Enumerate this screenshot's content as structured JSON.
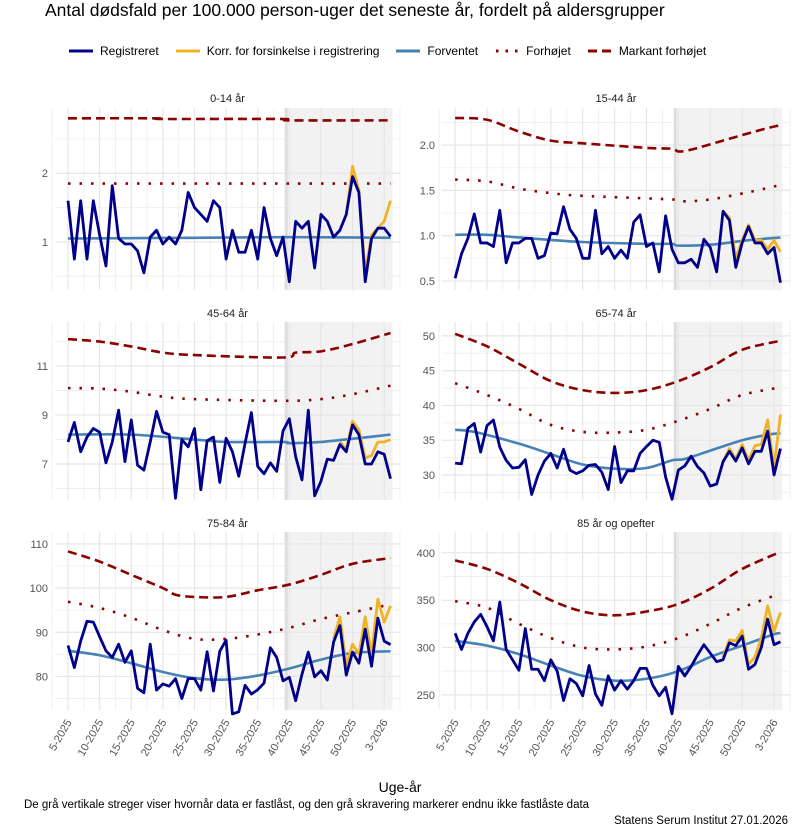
{
  "title": "Antal dødsfald per 100.000 person-uger det seneste år, fordelt på aldersgrupper",
  "legend": [
    {
      "label": "Registreret",
      "color": "#00008B",
      "style": "solid"
    },
    {
      "label": "Korr. for forsinkelse i registrering",
      "color": "#F0B323",
      "style": "solid"
    },
    {
      "label": "Forventet",
      "color": "#4682B4",
      "style": "solid"
    },
    {
      "label": "Forhøjet",
      "color": "#8B0000",
      "style": "dotted"
    },
    {
      "label": "Markant forhøjet",
      "color": "#8B0000",
      "style": "dashed"
    }
  ],
  "xlabel": "Uge-år",
  "footnote": "De grå vertikale streger viser hvornår data er fastlåst, og den grå skravering markerer endnu ikke fastlåste data",
  "credit": "Statens Serum Institut  27.01.2026",
  "chart_data": {
    "type": "line",
    "categories": [
      "5-2025",
      "6-2025",
      "7-2025",
      "8-2025",
      "9-2025",
      "10-2025",
      "11-2025",
      "12-2025",
      "13-2025",
      "14-2025",
      "15-2025",
      "16-2025",
      "17-2025",
      "18-2025",
      "19-2025",
      "20-2025",
      "21-2025",
      "22-2025",
      "23-2025",
      "24-2025",
      "25-2025",
      "26-2025",
      "27-2025",
      "28-2025",
      "29-2025",
      "30-2025",
      "31-2025",
      "32-2025",
      "33-2025",
      "34-2025",
      "35-2025",
      "36-2025",
      "37-2025",
      "38-2025",
      "39-2025",
      "40-2025",
      "41-2025",
      "42-2025",
      "43-2025",
      "44-2025",
      "45-2025",
      "46-2025",
      "47-2025",
      "48-2025",
      "49-2025",
      "50-2025",
      "51-2025",
      "52-2025",
      "1-2026",
      "2-2026",
      "3-2026",
      "4-2026"
    ],
    "x_tick_labels": [
      "5-2025",
      "10-2025",
      "15-2025",
      "20-2025",
      "25-2025",
      "30-2025",
      "35-2025",
      "40-2025",
      "45-2025",
      "50-2025",
      "3-2026"
    ],
    "x_tick_indices": [
      0,
      5,
      10,
      15,
      20,
      25,
      30,
      35,
      40,
      45,
      50
    ],
    "frozen_line_index": 34.5,
    "shaded_range_index": [
      34.5,
      51.3
    ],
    "panels": [
      {
        "label": "0-14 år",
        "ylim": [
          0.3,
          2.95
        ],
        "yticks": [
          1,
          2
        ],
        "ytick_labels": [
          "1",
          "2"
        ],
        "registered": [
          1.6,
          0.75,
          1.6,
          0.75,
          1.6,
          1.1,
          0.65,
          1.82,
          1.05,
          0.97,
          0.97,
          0.87,
          0.55,
          1.07,
          1.17,
          0.97,
          1.07,
          0.97,
          1.17,
          1.72,
          1.5,
          1.4,
          1.3,
          1.6,
          1.5,
          0.75,
          1.17,
          0.85,
          0.85,
          1.17,
          0.75,
          1.5,
          1.05,
          0.8,
          1.07,
          0.42,
          1.3,
          1.2,
          1.3,
          0.62,
          1.4,
          1.3,
          1.07,
          1.17,
          1.4,
          1.95,
          1.72,
          0.42,
          1.05,
          1.2,
          1.2,
          1.08
        ],
        "corrected": {
          "start_index": 44,
          "values": [
            1.4,
            2.1,
            1.75,
            0.55,
            1.1,
            1.2,
            1.3,
            1.6
          ]
        },
        "expected": {
          "index": [
            0,
            20,
            35,
            51
          ],
          "values": [
            1.05,
            1.06,
            1.07,
            1.06
          ]
        },
        "elevated": {
          "index": [
            0,
            51
          ],
          "values": [
            1.85,
            1.85
          ]
        },
        "markedly_elevated": {
          "index": [
            0,
            14,
            15,
            34,
            35,
            51
          ],
          "values": [
            2.8,
            2.8,
            2.79,
            2.79,
            2.77,
            2.77
          ]
        }
      },
      {
        "label": "15-44 år",
        "ylim": [
          0.4,
          2.41
        ],
        "yticks": [
          0.5,
          1.0,
          1.5,
          2.0
        ],
        "ytick_labels": [
          "0.5",
          "1.0",
          "1.5",
          "2.0"
        ],
        "registered": [
          0.53,
          0.8,
          0.97,
          1.24,
          0.92,
          0.92,
          0.88,
          1.28,
          0.7,
          0.92,
          0.92,
          0.97,
          0.97,
          0.75,
          0.78,
          1.03,
          1.02,
          1.32,
          1.07,
          0.97,
          0.75,
          0.75,
          1.28,
          0.8,
          0.88,
          0.75,
          0.84,
          0.75,
          1.15,
          1.23,
          0.88,
          0.92,
          0.6,
          1.22,
          0.85,
          0.7,
          0.7,
          0.74,
          0.65,
          0.96,
          0.87,
          0.6,
          1.27,
          1.17,
          0.65,
          0.92,
          1.1,
          0.92,
          0.92,
          0.8,
          0.87,
          0.48
        ],
        "corrected": {
          "start_index": 42,
          "values": [
            1.27,
            1.2,
            0.75,
            0.95,
            1.12,
            0.95,
            0.95,
            0.85,
            0.95,
            0.82
          ]
        },
        "expected": {
          "index": [
            0,
            5,
            10,
            20,
            30,
            34,
            35,
            40,
            46,
            51
          ],
          "values": [
            1.01,
            1.01,
            0.98,
            0.93,
            0.91,
            0.91,
            0.89,
            0.9,
            0.95,
            0.98
          ]
        },
        "elevated": {
          "index": [
            0,
            5,
            10,
            15,
            20,
            34,
            36,
            40,
            46,
            51
          ],
          "values": [
            1.62,
            1.6,
            1.52,
            1.47,
            1.44,
            1.4,
            1.38,
            1.4,
            1.48,
            1.56
          ]
        },
        "markedly_elevated": {
          "index": [
            0,
            5,
            10,
            15,
            20,
            30,
            34,
            35,
            37,
            42,
            48,
            51
          ],
          "values": [
            2.3,
            2.28,
            2.15,
            2.05,
            2.02,
            1.97,
            1.96,
            1.93,
            1.95,
            2.05,
            2.17,
            2.22
          ]
        }
      },
      {
        "label": "45-64 år",
        "ylim": [
          5.53,
          12.8
        ],
        "yticks": [
          7,
          9,
          11
        ],
        "ytick_labels": [
          "7",
          "9",
          "11"
        ],
        "registered": [
          7.9,
          8.7,
          7.5,
          8.1,
          8.45,
          8.3,
          7.05,
          7.9,
          9.2,
          7.1,
          8.8,
          6.95,
          6.75,
          7.9,
          9.15,
          8.3,
          8.2,
          5.6,
          8.0,
          7.7,
          8.45,
          5.95,
          7.95,
          8.1,
          6.25,
          8.05,
          7.5,
          6.5,
          7.85,
          9.1,
          6.9,
          6.6,
          7.05,
          6.7,
          8.35,
          8.85,
          7.3,
          6.35,
          9.2,
          5.7,
          6.3,
          7.2,
          7.15,
          7.8,
          7.5,
          8.6,
          8.2,
          7.0,
          7.0,
          7.5,
          7.4,
          6.4
        ],
        "corrected": {
          "start_index": 43,
          "values": [
            7.9,
            7.6,
            8.75,
            8.4,
            7.25,
            7.35,
            7.9,
            7.9,
            8.0
          ]
        },
        "expected": {
          "index": [
            0,
            10,
            20,
            25,
            34,
            35,
            40,
            51
          ],
          "values": [
            8.2,
            8.2,
            8.0,
            7.9,
            7.9,
            7.85,
            7.9,
            8.2
          ]
        },
        "elevated": {
          "index": [
            0,
            5,
            10,
            15,
            20,
            34,
            40,
            45,
            51
          ],
          "values": [
            10.1,
            10.08,
            9.95,
            9.75,
            9.65,
            9.58,
            9.65,
            9.85,
            10.2
          ]
        },
        "markedly_elevated": {
          "index": [
            0,
            5,
            10,
            15,
            20,
            34,
            36,
            40,
            45,
            51
          ],
          "values": [
            12.1,
            12.0,
            11.8,
            11.55,
            11.45,
            11.35,
            11.55,
            11.6,
            11.9,
            12.35
          ]
        }
      },
      {
        "label": "65-74 år",
        "ylim": [
          26.4,
          52
        ],
        "yticks": [
          30,
          35,
          40,
          45,
          50
        ],
        "ytick_labels": [
          "30",
          "35",
          "40",
          "45",
          "50"
        ],
        "registered": [
          31.7,
          31.6,
          36.7,
          37.4,
          33.3,
          37.1,
          37.9,
          34.0,
          32.1,
          31.0,
          31.1,
          32.2,
          27.2,
          30.0,
          32.0,
          33.1,
          31.0,
          33.7,
          30.7,
          30.2,
          30.6,
          31.4,
          31.5,
          30.4,
          27.9,
          34.1,
          28.9,
          30.6,
          30.6,
          33.1,
          34.1,
          35.0,
          34.7,
          29.7,
          26.5,
          30.7,
          31.3,
          32.7,
          31.2,
          30.3,
          28.4,
          28.7,
          31.9,
          33.4,
          32.0,
          33.9,
          31.6,
          33.4,
          33.4,
          36.3,
          30.0,
          33.8
        ],
        "corrected": {
          "start_index": 42,
          "values": [
            31.9,
            33.8,
            32.3,
            34.4,
            32.1,
            34.2,
            34.4,
            37.9,
            31.0,
            38.7
          ]
        },
        "expected": {
          "index": [
            0,
            3,
            10,
            15,
            20,
            25,
            30,
            34,
            36,
            40,
            45,
            49,
            51
          ],
          "values": [
            36.5,
            36.2,
            34.5,
            33,
            31.5,
            30.9,
            31.0,
            32.1,
            32.3,
            33.5,
            35.0,
            35.8,
            36.0
          ]
        },
        "elevated": {
          "index": [
            0,
            5,
            10,
            15,
            20,
            25,
            30,
            35,
            40,
            45,
            51
          ],
          "values": [
            43.2,
            41.5,
            39.5,
            37.2,
            36.2,
            36.1,
            36.5,
            37.8,
            39.5,
            41.5,
            42.6
          ]
        },
        "markedly_elevated": {
          "index": [
            0,
            5,
            10,
            15,
            20,
            25,
            30,
            35,
            40,
            45,
            51
          ],
          "values": [
            50.3,
            48.5,
            46,
            43.5,
            42.2,
            41.8,
            42.2,
            43.5,
            45.5,
            48.0,
            49.3
          ]
        }
      },
      {
        "label": "75-84 år",
        "ylim": [
          72.4,
          112.7
        ],
        "yticks": [
          80,
          90,
          100,
          110
        ],
        "ytick_labels": [
          "80",
          "90",
          "100",
          "110"
        ],
        "registered": [
          87,
          82,
          88,
          92.5,
          92.3,
          89,
          85.8,
          84.3,
          87.3,
          83.2,
          85.8,
          77.3,
          76.3,
          87.3,
          76.9,
          78.3,
          77.8,
          79.5,
          75,
          79.5,
          79.5,
          76.9,
          85.6,
          76.7,
          85.7,
          88.2,
          71.5,
          72,
          78,
          76,
          77,
          78.5,
          86.5,
          84.3,
          79,
          79.8,
          74.5,
          80.5,
          85.5,
          79.9,
          81.3,
          79.2,
          87.8,
          91.5,
          80.3,
          85.5,
          83,
          90.7,
          82.3,
          93.2,
          88,
          87.2
        ],
        "corrected": {
          "start_index": 42,
          "values": [
            88.5,
            93.5,
            82.5,
            87.3,
            85,
            93.5,
            85,
            97.5,
            92.3,
            96
          ]
        },
        "expected": {
          "index": [
            0,
            5,
            10,
            15,
            20,
            25,
            30,
            35,
            40,
            45,
            51
          ],
          "values": [
            85.8,
            84.8,
            83,
            81,
            79.6,
            79.3,
            80.2,
            81.8,
            83.8,
            85.3,
            85.7
          ]
        },
        "elevated": {
          "index": [
            0,
            5,
            10,
            15,
            20,
            25,
            30,
            35,
            40,
            45,
            50
          ],
          "values": [
            96.9,
            95.5,
            93.3,
            90.5,
            88.5,
            88.5,
            89.5,
            91,
            93,
            94.5,
            96
          ]
        },
        "markedly_elevated": {
          "index": [
            0,
            5,
            10,
            15,
            17,
            20,
            25,
            30,
            35,
            40,
            45,
            51
          ],
          "values": [
            108.3,
            106,
            103,
            100,
            98.5,
            98,
            98,
            99.5,
            100.8,
            103,
            105.5,
            106.8
          ]
        }
      },
      {
        "label": "85 år og opefter",
        "ylim": [
          234,
          422
        ],
        "yticks": [
          250,
          300,
          350,
          400
        ],
        "ytick_labels": [
          "250",
          "300",
          "350",
          "400"
        ],
        "registered": [
          315,
          298,
          315,
          327,
          335,
          322,
          307,
          348,
          298,
          287,
          276,
          320,
          277,
          277,
          265,
          287,
          275,
          244,
          267,
          262,
          249,
          281,
          251,
          239,
          270,
          255,
          265,
          256,
          265,
          278,
          278,
          260,
          249,
          258,
          230,
          280,
          270,
          280,
          292,
          303,
          294,
          285,
          287,
          305,
          302,
          312,
          277,
          282,
          300,
          330,
          303,
          306
        ],
        "corrected": {
          "start_index": 42,
          "values": [
            290,
            308,
            307,
            318,
            282,
            290,
            310,
            344,
            317,
            337
          ]
        },
        "expected": {
          "index": [
            0,
            5,
            10,
            15,
            20,
            25,
            30,
            35,
            40,
            45,
            50,
            51
          ],
          "values": [
            307,
            302,
            293,
            281,
            270,
            265,
            267,
            275,
            290,
            302,
            314,
            315
          ]
        },
        "elevated": {
          "index": [
            0,
            5,
            10,
            15,
            20,
            25,
            30,
            35,
            40,
            45,
            51
          ],
          "values": [
            349,
            342,
            325,
            310,
            300,
            298,
            301,
            310,
            325,
            342,
            357
          ]
        },
        "markedly_elevated": {
          "index": [
            0,
            5,
            10,
            15,
            20,
            25,
            30,
            35,
            40,
            45,
            51
          ],
          "values": [
            392,
            383,
            368,
            350,
            338,
            334,
            338,
            346,
            362,
            383,
            401
          ]
        }
      }
    ]
  }
}
